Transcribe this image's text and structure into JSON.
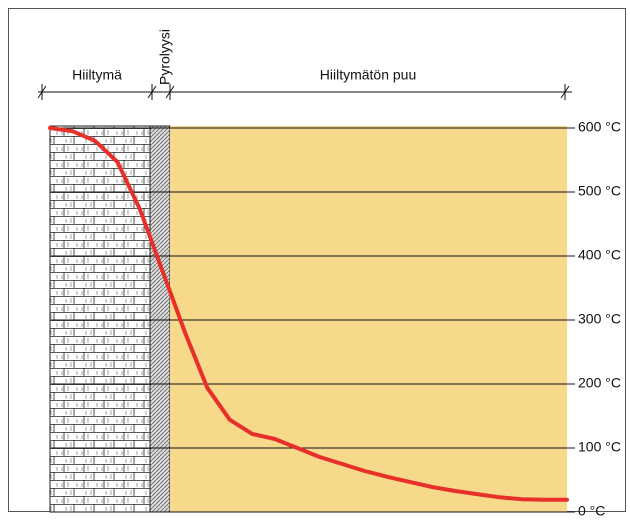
{
  "chart_data": {
    "type": "line",
    "zones": [
      "Hiiltymä",
      "Pyrolyysi",
      "Hiiltymätön puu"
    ],
    "categories": [
      null,
      null,
      null,
      null,
      null,
      null,
      null,
      null,
      null,
      null,
      null,
      null,
      null,
      null,
      null,
      null,
      null,
      null,
      null,
      null,
      null,
      null,
      null,
      null
    ],
    "series": [
      {
        "color": "#e8302a",
        "values": [
          600,
          595,
          580,
          547,
          473,
          377,
          281,
          194,
          144,
          122,
          114,
          100,
          86,
          75,
          64,
          55,
          47,
          39,
          33,
          28,
          23,
          20,
          19,
          19
        ]
      }
    ],
    "ylim": [
      0,
      600
    ],
    "yticks": [
      {
        "value": 0,
        "label": "0 °C"
      },
      {
        "value": 100,
        "label": "100 °C"
      },
      {
        "value": 200,
        "label": "200 °C"
      },
      {
        "value": 300,
        "label": "300 °C"
      },
      {
        "value": 400,
        "label": "400 °C"
      },
      {
        "value": 500,
        "label": "500 °C"
      },
      {
        "value": 600,
        "label": "600 °C"
      }
    ],
    "grid": true
  }
}
